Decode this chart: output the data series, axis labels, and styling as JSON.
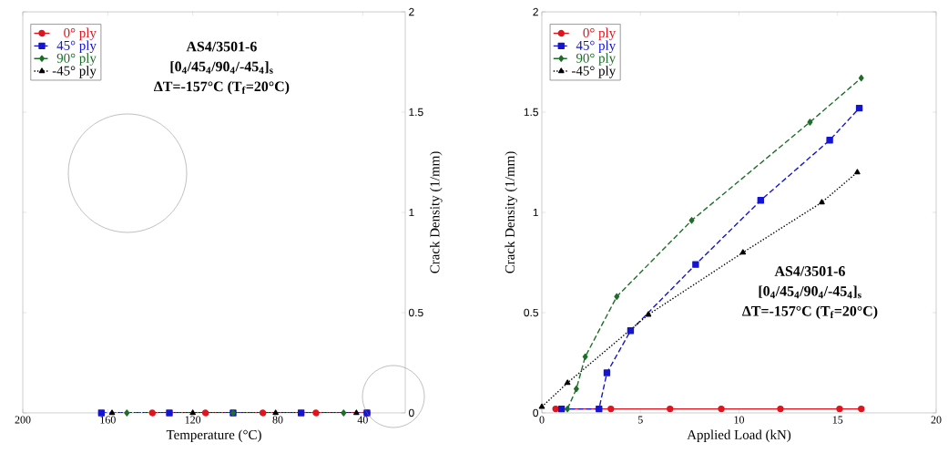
{
  "chart_data": [
    {
      "type": "line",
      "xlabel": "Temperature (°C)",
      "ylabel": "Crack Density (1/mm)",
      "xlim": [
        200,
        20
      ],
      "ylim": [
        0,
        2
      ],
      "xticks": [
        200,
        160,
        120,
        80,
        40
      ],
      "yticks": [
        0,
        0.5,
        1,
        1.5,
        2
      ],
      "legend": "top left",
      "annotations": [
        "AS4/3501-6",
        "[0$_{4}$/45$_{4}$/90$_{4}$/-45$_{4}$]$_{s}$",
        "ΔT=-157°C (T$_{f}$=20°C)"
      ],
      "series": [
        {
          "name": "0° ply",
          "color": "#e0141e",
          "marker": "circle",
          "line_style": "solid",
          "x": [
            139,
            114,
            87,
            62,
            38
          ],
          "values": [
            0,
            0,
            0,
            0,
            0
          ]
        },
        {
          "name": "45° ply",
          "color": "#1414d2",
          "marker": "square",
          "line_style": "dashed",
          "x": [
            163,
            131,
            101,
            69,
            38
          ],
          "values": [
            0,
            0,
            0,
            0,
            0
          ]
        },
        {
          "name": "90° ply",
          "color": "#1e6e28",
          "marker": "diamond",
          "line_style": "dashed",
          "x": [
            151,
            101,
            49
          ],
          "values": [
            0,
            0,
            0
          ]
        },
        {
          "name": "-45° ply",
          "color": "#000000",
          "marker": "triangle",
          "line_style": "dotted",
          "x": [
            158,
            120,
            81,
            43
          ],
          "values": [
            0,
            0,
            0,
            0
          ]
        }
      ]
    },
    {
      "type": "line",
      "xlabel": "Applied Load (kN)",
      "ylabel": "Crack Density (1/mm)",
      "xlim": [
        0,
        20
      ],
      "ylim": [
        0,
        2
      ],
      "xticks": [
        0,
        5,
        10,
        15,
        20
      ],
      "yticks": [
        0,
        0.5,
        1,
        1.5,
        2
      ],
      "legend": "top left",
      "annotations": [
        "AS4/3501-6",
        "[0$_{4}$/45$_{4}$/90$_{4}$/-45$_{4}$]$_{s}$",
        "ΔT=-157°C (T$_{f}$=20°C)"
      ],
      "series": [
        {
          "name": "0° ply",
          "color": "#e0141e",
          "marker": "circle",
          "line_style": "solid",
          "x": [
            0.7,
            3.5,
            6.5,
            9.1,
            12.1,
            15.1,
            16.2
          ],
          "values": [
            0.02,
            0.02,
            0.02,
            0.02,
            0.02,
            0.02,
            0.02
          ]
        },
        {
          "name": "45° ply",
          "color": "#1414d2",
          "marker": "square",
          "line_style": "dashed",
          "x": [
            1.0,
            2.9,
            3.3,
            4.5,
            7.8,
            11.1,
            14.6,
            16.1
          ],
          "values": [
            0.02,
            0.02,
            0.2,
            0.41,
            0.74,
            1.06,
            1.36,
            1.52
          ]
        },
        {
          "name": "90° ply",
          "color": "#1e6e28",
          "marker": "diamond",
          "line_style": "dashed",
          "x": [
            1.3,
            1.75,
            2.2,
            3.8,
            7.6,
            13.6,
            16.2
          ],
          "values": [
            0.02,
            0.12,
            0.28,
            0.58,
            0.96,
            1.45,
            1.67
          ]
        },
        {
          "name": "-45° ply",
          "color": "#000000",
          "marker": "triangle",
          "line_style": "dotted",
          "x": [
            0,
            1.3,
            5.4,
            10.2,
            14.2,
            16.0
          ],
          "values": [
            0.03,
            0.15,
            0.49,
            0.8,
            1.05,
            1.2
          ]
        }
      ]
    }
  ]
}
